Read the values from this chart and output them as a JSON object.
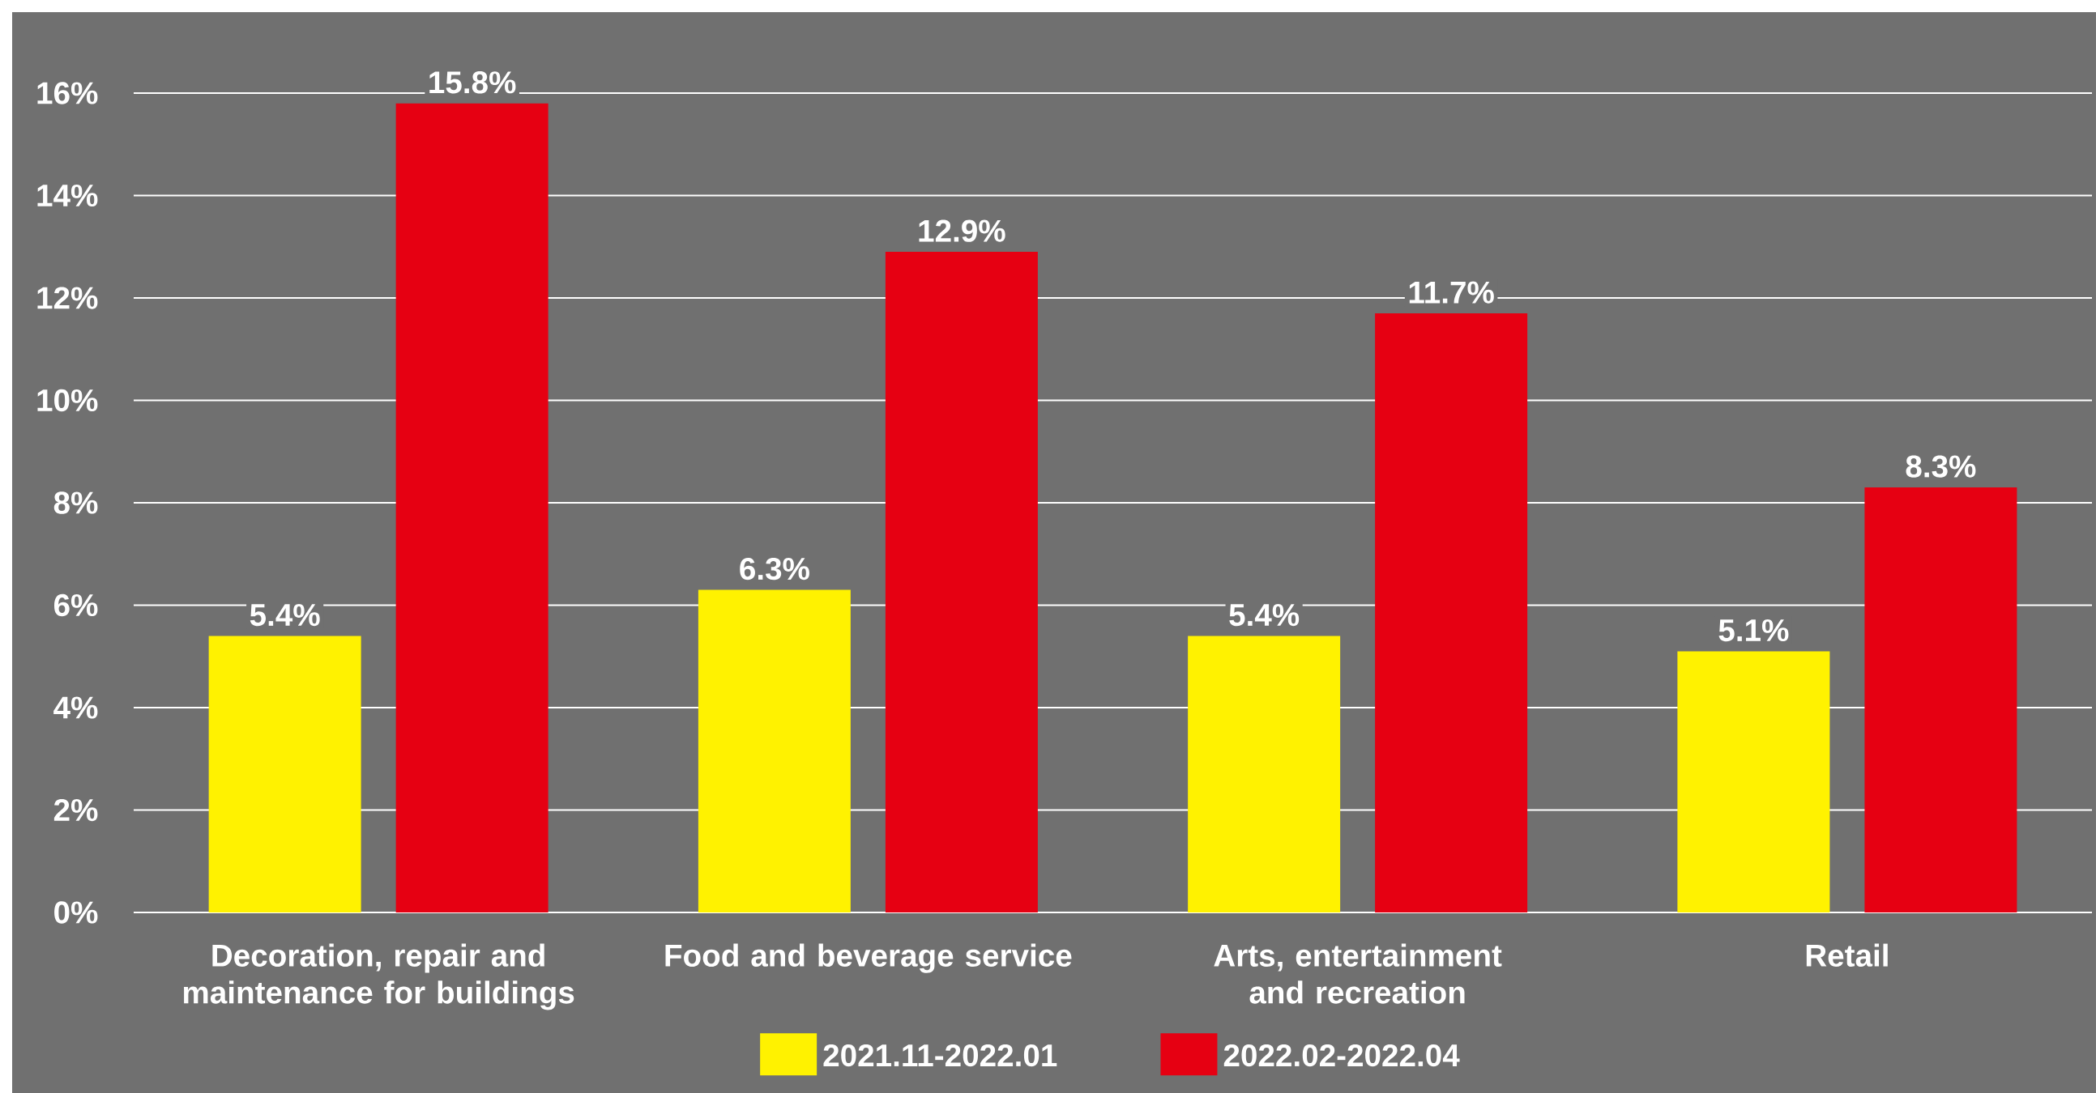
{
  "chart_data": {
    "type": "bar",
    "categories": [
      "Decoration, repair and maintenance for buildings",
      "Food and beverage service",
      "Arts, entertainment and recreation",
      "Retail"
    ],
    "series": [
      {
        "name": "2021.11-2022.01",
        "color": "#fff200",
        "values": [
          5.4,
          6.3,
          5.4,
          5.1
        ],
        "value_labels": [
          "5.4%",
          "6.3%",
          "5.4%",
          "5.1%"
        ]
      },
      {
        "name": "2022.02-2022.04",
        "color": "#e60012",
        "values": [
          15.8,
          12.9,
          11.7,
          8.3
        ],
        "value_labels": [
          "15.8%",
          "12.9%",
          "11.7%",
          "8.3%"
        ]
      }
    ],
    "ylim": [
      0,
      16
    ],
    "yticks": [
      {
        "value": 0,
        "label": "0%"
      },
      {
        "value": 2,
        "label": "2%"
      },
      {
        "value": 4,
        "label": "4%"
      },
      {
        "value": 6,
        "label": "6%"
      },
      {
        "value": 8,
        "label": "8%"
      },
      {
        "value": 10,
        "label": "10%"
      },
      {
        "value": 12,
        "label": "12%"
      },
      {
        "value": 14,
        "label": "14%"
      },
      {
        "value": 16,
        "label": "16%"
      }
    ],
    "grid": "y",
    "legend": "bottom"
  }
}
